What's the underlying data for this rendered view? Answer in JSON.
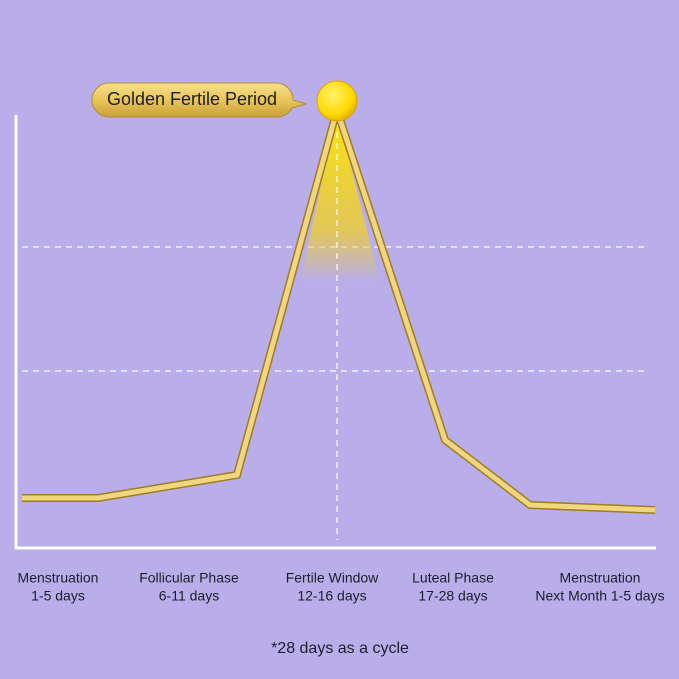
{
  "callout": "Golden Fertile Period",
  "phases": [
    {
      "name": "Menstruation",
      "days": "1-5 days"
    },
    {
      "name": "Follicular Phase",
      "days": "6-11 days"
    },
    {
      "name": "Fertile Window",
      "days": "12-16 days"
    },
    {
      "name": "Luteal Phase",
      "days": "17-28 days"
    },
    {
      "name": "Menstruation",
      "days": "Next Month 1-5 days"
    }
  ],
  "footnote": "*28 days as a cycle"
}
